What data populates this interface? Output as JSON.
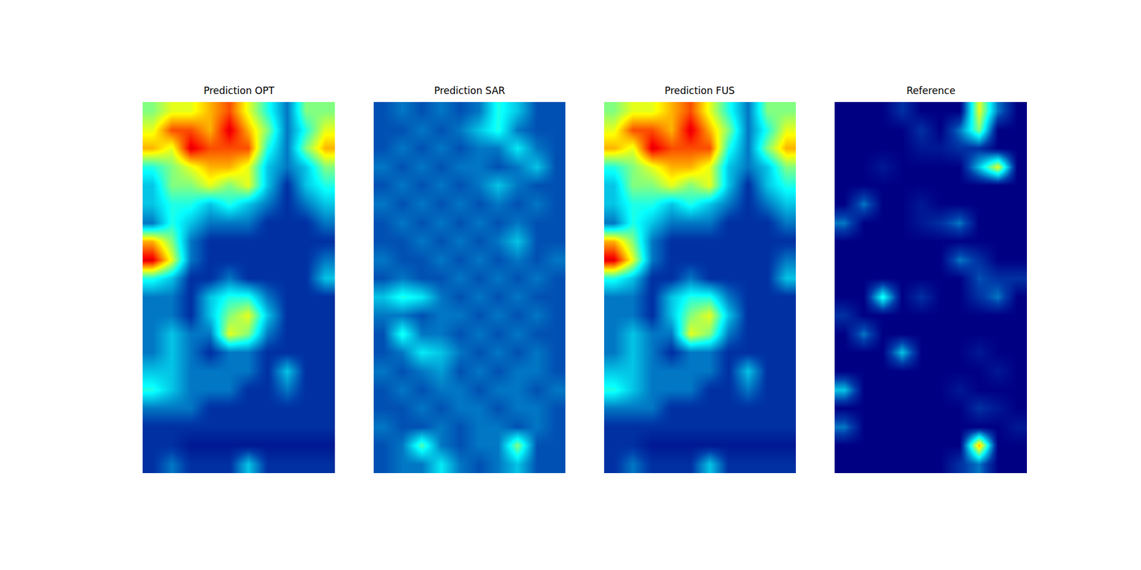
{
  "chart_data": [
    {
      "type": "heatmap",
      "title": "Prediction OPT",
      "color": "Jet",
      "zlim": [
        0,
        1
      ],
      "tick_labels": false,
      "z": [
        [
          0.5,
          0.6,
          0.6,
          0.7,
          0.8,
          0.6,
          0.4,
          0.2,
          0.5,
          0.5
        ],
        [
          0.6,
          0.8,
          0.8,
          0.7,
          0.9,
          0.7,
          0.5,
          0.2,
          0.4,
          0.6
        ],
        [
          0.7,
          0.6,
          0.9,
          0.8,
          0.8,
          0.8,
          0.4,
          0.2,
          0.5,
          0.7
        ],
        [
          0.4,
          0.5,
          0.6,
          0.7,
          0.7,
          0.6,
          0.3,
          0.2,
          0.3,
          0.5
        ],
        [
          0.3,
          0.5,
          0.5,
          0.6,
          0.5,
          0.6,
          0.3,
          0.1,
          0.3,
          0.4
        ],
        [
          0.3,
          0.4,
          0.4,
          0.3,
          0.4,
          0.3,
          0.2,
          0.1,
          0.2,
          0.3
        ],
        [
          0.2,
          0.4,
          0.3,
          0.2,
          0.2,
          0.2,
          0.1,
          0.1,
          0.1,
          0.2
        ],
        [
          0.7,
          0.5,
          0.2,
          0.1,
          0.1,
          0.1,
          0.1,
          0.1,
          0.1,
          0.1
        ],
        [
          0.9,
          0.6,
          0.2,
          0.1,
          0.1,
          0.1,
          0.1,
          0.1,
          0.1,
          0.2
        ],
        [
          0.4,
          0.3,
          0.1,
          0.1,
          0.2,
          0.1,
          0.1,
          0.1,
          0.1,
          0.3
        ],
        [
          0.2,
          0.2,
          0.1,
          0.3,
          0.4,
          0.4,
          0.2,
          0.1,
          0.1,
          0.1
        ],
        [
          0.2,
          0.2,
          0.1,
          0.3,
          0.5,
          0.6,
          0.3,
          0.1,
          0.1,
          0.1
        ],
        [
          0.2,
          0.3,
          0.2,
          0.2,
          0.6,
          0.5,
          0.2,
          0.1,
          0.1,
          0.1
        ],
        [
          0.2,
          0.3,
          0.2,
          0.1,
          0.2,
          0.2,
          0.1,
          0.1,
          0.1,
          0.1
        ],
        [
          0.3,
          0.3,
          0.2,
          0.2,
          0.2,
          0.2,
          0.1,
          0.3,
          0.1,
          0.1
        ],
        [
          0.4,
          0.3,
          0.2,
          0.2,
          0.2,
          0.1,
          0.1,
          0.2,
          0.1,
          0.1
        ],
        [
          0.2,
          0.2,
          0.2,
          0.1,
          0.1,
          0.1,
          0.1,
          0.1,
          0.1,
          0.1
        ],
        [
          0.1,
          0.1,
          0.1,
          0.1,
          0.1,
          0.1,
          0.1,
          0.1,
          0.1,
          0.1
        ],
        [
          0.1,
          0.1,
          0.05,
          0.05,
          0.05,
          0.05,
          0.05,
          0.05,
          0.05,
          0.05
        ],
        [
          0.1,
          0.2,
          0.1,
          0.1,
          0.1,
          0.3,
          0.1,
          0.1,
          0.1,
          0.1
        ]
      ]
    },
    {
      "type": "heatmap",
      "title": "Prediction SAR",
      "color": "Jet",
      "zlim": [
        0,
        1
      ],
      "tick_labels": false,
      "z": [
        [
          0.15,
          0.2,
          0.15,
          0.2,
          0.15,
          0.2,
          0.4,
          0.3,
          0.15,
          0.15
        ],
        [
          0.15,
          0.15,
          0.2,
          0.15,
          0.2,
          0.3,
          0.4,
          0.2,
          0.15,
          0.15
        ],
        [
          0.15,
          0.2,
          0.15,
          0.2,
          0.15,
          0.2,
          0.2,
          0.35,
          0.2,
          0.15
        ],
        [
          0.2,
          0.15,
          0.2,
          0.15,
          0.2,
          0.2,
          0.15,
          0.2,
          0.3,
          0.15
        ],
        [
          0.15,
          0.2,
          0.15,
          0.2,
          0.15,
          0.2,
          0.3,
          0.2,
          0.15,
          0.15
        ],
        [
          0.2,
          0.15,
          0.2,
          0.15,
          0.2,
          0.15,
          0.2,
          0.15,
          0.2,
          0.15
        ],
        [
          0.15,
          0.2,
          0.15,
          0.2,
          0.15,
          0.2,
          0.15,
          0.2,
          0.15,
          0.15
        ],
        [
          0.15,
          0.15,
          0.2,
          0.15,
          0.2,
          0.15,
          0.2,
          0.3,
          0.15,
          0.15
        ],
        [
          0.2,
          0.15,
          0.15,
          0.2,
          0.15,
          0.2,
          0.15,
          0.2,
          0.15,
          0.2
        ],
        [
          0.15,
          0.2,
          0.15,
          0.15,
          0.2,
          0.15,
          0.2,
          0.15,
          0.2,
          0.15
        ],
        [
          0.3,
          0.4,
          0.35,
          0.2,
          0.15,
          0.2,
          0.15,
          0.2,
          0.15,
          0.15
        ],
        [
          0.2,
          0.2,
          0.15,
          0.2,
          0.2,
          0.15,
          0.2,
          0.15,
          0.2,
          0.15
        ],
        [
          0.15,
          0.4,
          0.2,
          0.2,
          0.15,
          0.2,
          0.15,
          0.2,
          0.15,
          0.15
        ],
        [
          0.15,
          0.2,
          0.35,
          0.3,
          0.2,
          0.15,
          0.2,
          0.15,
          0.2,
          0.15
        ],
        [
          0.2,
          0.15,
          0.2,
          0.25,
          0.15,
          0.2,
          0.15,
          0.2,
          0.2,
          0.15
        ],
        [
          0.15,
          0.2,
          0.15,
          0.2,
          0.2,
          0.15,
          0.2,
          0.2,
          0.15,
          0.2
        ],
        [
          0.15,
          0.15,
          0.2,
          0.15,
          0.2,
          0.2,
          0.15,
          0.2,
          0.2,
          0.15
        ],
        [
          0.2,
          0.15,
          0.15,
          0.2,
          0.15,
          0.2,
          0.2,
          0.15,
          0.2,
          0.15
        ],
        [
          0.15,
          0.2,
          0.45,
          0.2,
          0.15,
          0.2,
          0.2,
          0.5,
          0.15,
          0.15
        ],
        [
          0.15,
          0.2,
          0.2,
          0.35,
          0.2,
          0.15,
          0.2,
          0.3,
          0.15,
          0.15
        ]
      ]
    },
    {
      "type": "heatmap",
      "title": "Prediction FUS",
      "color": "Jet",
      "zlim": [
        0,
        1
      ],
      "tick_labels": false,
      "z": [
        [
          0.5,
          0.6,
          0.6,
          0.7,
          0.8,
          0.6,
          0.4,
          0.2,
          0.5,
          0.5
        ],
        [
          0.6,
          0.8,
          0.8,
          0.7,
          0.9,
          0.7,
          0.5,
          0.2,
          0.4,
          0.6
        ],
        [
          0.7,
          0.6,
          0.9,
          0.8,
          0.8,
          0.8,
          0.4,
          0.2,
          0.5,
          0.7
        ],
        [
          0.4,
          0.5,
          0.6,
          0.7,
          0.7,
          0.6,
          0.3,
          0.2,
          0.3,
          0.5
        ],
        [
          0.3,
          0.5,
          0.5,
          0.6,
          0.5,
          0.6,
          0.3,
          0.1,
          0.3,
          0.4
        ],
        [
          0.3,
          0.4,
          0.4,
          0.3,
          0.4,
          0.3,
          0.2,
          0.1,
          0.2,
          0.3
        ],
        [
          0.2,
          0.4,
          0.3,
          0.2,
          0.2,
          0.2,
          0.1,
          0.1,
          0.1,
          0.2
        ],
        [
          0.7,
          0.5,
          0.2,
          0.1,
          0.1,
          0.1,
          0.1,
          0.1,
          0.1,
          0.1
        ],
        [
          0.9,
          0.6,
          0.2,
          0.1,
          0.1,
          0.1,
          0.1,
          0.1,
          0.1,
          0.2
        ],
        [
          0.4,
          0.3,
          0.1,
          0.1,
          0.2,
          0.1,
          0.1,
          0.1,
          0.1,
          0.3
        ],
        [
          0.2,
          0.2,
          0.1,
          0.3,
          0.4,
          0.4,
          0.2,
          0.1,
          0.1,
          0.1
        ],
        [
          0.2,
          0.2,
          0.1,
          0.3,
          0.5,
          0.6,
          0.3,
          0.1,
          0.1,
          0.1
        ],
        [
          0.2,
          0.3,
          0.2,
          0.2,
          0.6,
          0.5,
          0.2,
          0.1,
          0.1,
          0.1
        ],
        [
          0.2,
          0.3,
          0.2,
          0.1,
          0.2,
          0.2,
          0.1,
          0.1,
          0.1,
          0.1
        ],
        [
          0.3,
          0.3,
          0.2,
          0.2,
          0.2,
          0.2,
          0.1,
          0.3,
          0.1,
          0.1
        ],
        [
          0.4,
          0.3,
          0.2,
          0.2,
          0.2,
          0.1,
          0.1,
          0.2,
          0.1,
          0.1
        ],
        [
          0.2,
          0.2,
          0.2,
          0.1,
          0.1,
          0.1,
          0.1,
          0.1,
          0.1,
          0.1
        ],
        [
          0.1,
          0.1,
          0.1,
          0.1,
          0.1,
          0.1,
          0.1,
          0.1,
          0.1,
          0.1
        ],
        [
          0.1,
          0.1,
          0.05,
          0.05,
          0.05,
          0.05,
          0.05,
          0.05,
          0.05,
          0.05
        ],
        [
          0.1,
          0.2,
          0.1,
          0.1,
          0.1,
          0.3,
          0.1,
          0.1,
          0.1,
          0.1
        ]
      ]
    },
    {
      "type": "heatmap",
      "title": "Reference",
      "color": "Jet",
      "zlim": [
        0,
        1
      ],
      "tick_labels": false,
      "z": [
        [
          0,
          0,
          0,
          0.1,
          0,
          0,
          0,
          0.6,
          0.2,
          0
        ],
        [
          0,
          0,
          0,
          0,
          0.1,
          0,
          0.2,
          0.5,
          0,
          0
        ],
        [
          0,
          0,
          0,
          0,
          0.05,
          0.05,
          0.1,
          0.1,
          0,
          0
        ],
        [
          0,
          0,
          0.05,
          0,
          0,
          0,
          0,
          0.3,
          0.6,
          0
        ],
        [
          0,
          0,
          0,
          0,
          0,
          0,
          0,
          0,
          0,
          0
        ],
        [
          0,
          0.2,
          0,
          0,
          0.05,
          0,
          0,
          0,
          0,
          0
        ],
        [
          0.2,
          0,
          0,
          0,
          0.05,
          0.1,
          0.2,
          0,
          0,
          0
        ],
        [
          0,
          0,
          0,
          0,
          0,
          0,
          0,
          0,
          0,
          0
        ],
        [
          0,
          0,
          0,
          0,
          0,
          0,
          0.2,
          0.1,
          0,
          0
        ],
        [
          0,
          0,
          0,
          0,
          0,
          0,
          0,
          0.15,
          0.1,
          0.1
        ],
        [
          0,
          0,
          0.4,
          0,
          0.1,
          0,
          0,
          0.1,
          0.2,
          0
        ],
        [
          0.1,
          0,
          0,
          0,
          0,
          0,
          0,
          0,
          0,
          0
        ],
        [
          0,
          0.2,
          0,
          0,
          0,
          0,
          0,
          0,
          0,
          0
        ],
        [
          0,
          0,
          0,
          0.3,
          0,
          0,
          0,
          0.05,
          0,
          0
        ],
        [
          0,
          0,
          0,
          0,
          0,
          0,
          0,
          0,
          0.05,
          0
        ],
        [
          0.3,
          0,
          0,
          0,
          0,
          0,
          0.05,
          0,
          0,
          0
        ],
        [
          0,
          0,
          0,
          0,
          0,
          0,
          0,
          0.1,
          0.05,
          0
        ],
        [
          0.2,
          0,
          0,
          0,
          0,
          0,
          0,
          0,
          0,
          0.05
        ],
        [
          0,
          0,
          0,
          0,
          0,
          0,
          0,
          0.7,
          0,
          0
        ],
        [
          0,
          0,
          0,
          0,
          0,
          0,
          0.1,
          0.2,
          0,
          0
        ]
      ]
    }
  ]
}
